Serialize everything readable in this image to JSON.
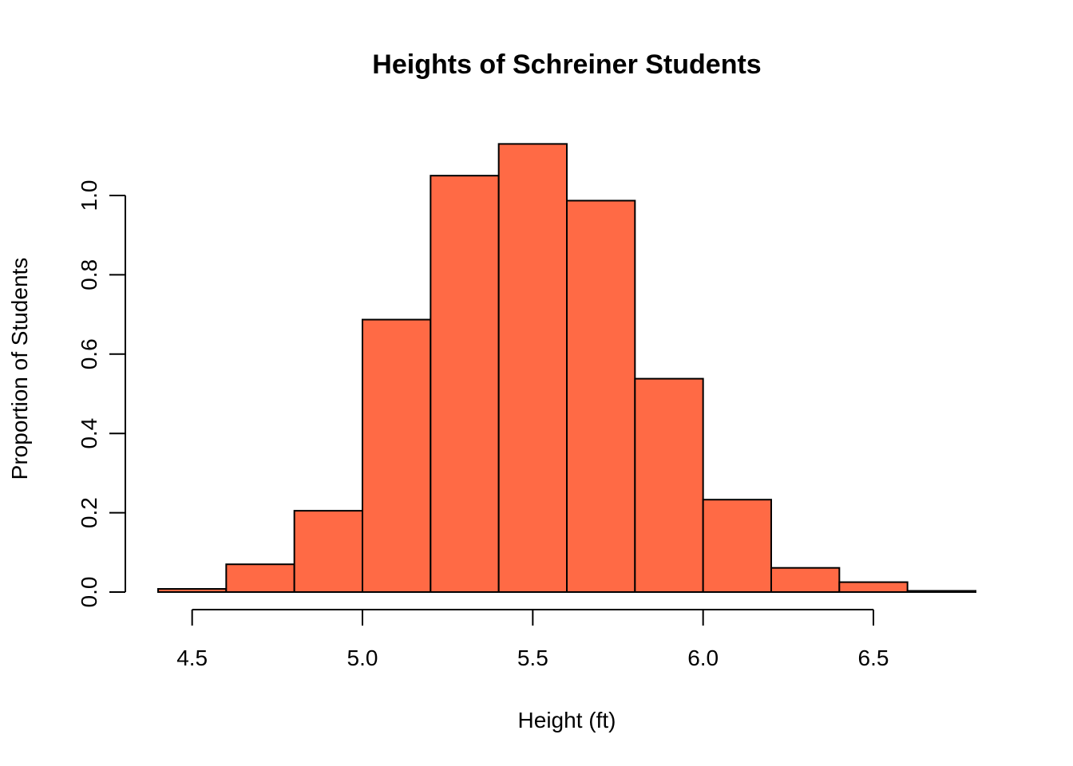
{
  "chart_data": {
    "type": "bar",
    "title": "Heights of Schreiner Students",
    "xlabel": "Height (ft)",
    "ylabel": "Proportion of Students",
    "bin_edges": [
      4.4,
      4.6,
      4.8,
      5.0,
      5.2,
      5.4,
      5.6,
      5.8,
      6.0,
      6.2,
      6.4,
      6.6,
      6.8
    ],
    "values": [
      0.008,
      0.07,
      0.205,
      0.687,
      1.05,
      1.13,
      0.987,
      0.538,
      0.233,
      0.061,
      0.025,
      0.003
    ],
    "xlim": [
      4.4,
      6.8
    ],
    "ylim": [
      0,
      1.13
    ],
    "x_ticks": [
      4.5,
      5.0,
      5.5,
      6.0,
      6.5
    ],
    "x_tick_labels": [
      "4.5",
      "5.0",
      "5.5",
      "6.0",
      "6.5"
    ],
    "y_ticks": [
      0.0,
      0.2,
      0.4,
      0.6,
      0.8,
      1.0
    ],
    "y_tick_labels": [
      "0.0",
      "0.2",
      "0.4",
      "0.6",
      "0.8",
      "1.0"
    ],
    "grid": false,
    "bar_color": "#FF6A45",
    "edge_color": "#000000"
  }
}
